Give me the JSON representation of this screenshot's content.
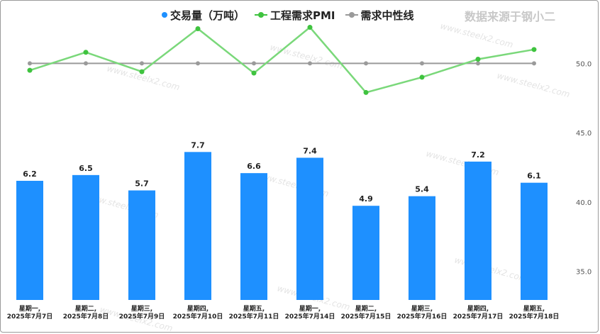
{
  "legend": {
    "volume": "交易量（万吨）",
    "pmi": "工程需求PMI",
    "neutral": "需求中性线"
  },
  "source_text": "数据来源于钢小二",
  "watermark": "www.steelx2.com",
  "colors": {
    "bar": "#1e90ff",
    "pmi": "#7ad87a",
    "pmi_dot": "#3fc33f",
    "neutral": "#9a9a9a"
  },
  "chart_data": {
    "type": "bar",
    "categories": [
      [
        "星期一,",
        "2025年7月7日"
      ],
      [
        "星期二,",
        "2025年7月8日"
      ],
      [
        "星期三,",
        "2025年7月9日"
      ],
      [
        "星期四,",
        "2025年7月10日"
      ],
      [
        "星期五,",
        "2025年7月11日"
      ],
      [
        "星期一,",
        "2025年7月14日"
      ],
      [
        "星期二,",
        "2025年7月15日"
      ],
      [
        "星期三,",
        "2025年7月16日"
      ],
      [
        "星期四,",
        "2025年7月17日"
      ],
      [
        "星期五,",
        "2025年7月18日"
      ]
    ],
    "series": [
      {
        "name": "交易量（万吨）",
        "type": "bar",
        "values": [
          6.2,
          6.5,
          5.7,
          7.7,
          6.6,
          7.4,
          4.9,
          5.4,
          7.2,
          6.1
        ],
        "labels": [
          "6.2",
          "6.5",
          "5.7",
          "7.7",
          "6.6",
          "7.4",
          "4.9",
          "5.4",
          "7.2",
          "6.1"
        ]
      },
      {
        "name": "工程需求PMI",
        "type": "line",
        "values": [
          49.5,
          50.8,
          49.4,
          52.5,
          49.3,
          52.6,
          47.9,
          49.0,
          50.3,
          51.0
        ]
      },
      {
        "name": "需求中性线",
        "type": "line",
        "values": [
          50,
          50,
          50,
          50,
          50,
          50,
          50,
          50,
          50,
          50
        ]
      }
    ],
    "y2_ticks": [
      "50.0",
      "45.0",
      "40.0",
      "35.0"
    ],
    "y2_tick_values": [
      50,
      45,
      40,
      35
    ],
    "ylim_right": [
      32.5,
      52.5
    ],
    "ylim_left": [
      0,
      8.5
    ],
    "legend_position": "top-center"
  }
}
